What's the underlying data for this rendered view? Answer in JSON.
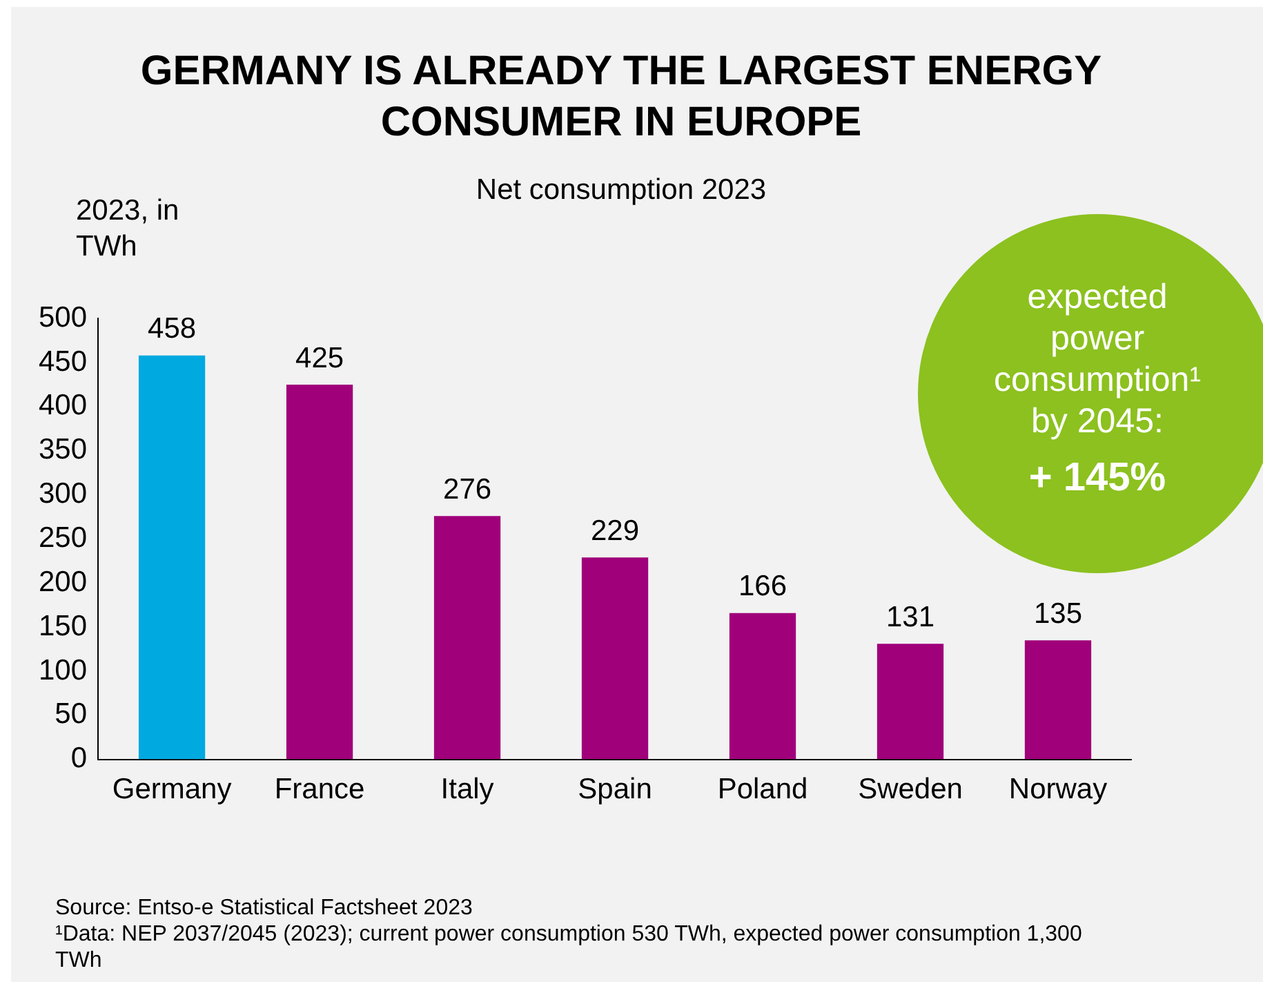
{
  "chart_data": {
    "type": "bar",
    "title": "GERMANY IS ALREADY THE LARGEST ENERGY CONSUMER IN EUROPE",
    "subtitle": "Net consumption 2023",
    "ylabel": "2023, in TWh",
    "categories": [
      "Germany",
      "France",
      "Italy",
      "Spain",
      "Poland",
      "Sweden",
      "Norway"
    ],
    "values": [
      458,
      425,
      276,
      229,
      166,
      131,
      135
    ],
    "colors": [
      "#00a9e0",
      "#a0007a",
      "#a0007a",
      "#a0007a",
      "#a0007a",
      "#a0007a",
      "#a0007a"
    ],
    "ylim": [
      0,
      500
    ],
    "yticks": [
      0,
      50,
      100,
      150,
      200,
      250,
      300,
      350,
      400,
      450,
      500
    ],
    "grid": false,
    "legend": false,
    "data_labels": true,
    "annotations": [
      "expected power consumption¹ by 2045:",
      "+ 145%",
      "Source: Entso-e Statistical Factsheet 2023",
      "¹Data: NEP 2037/2045 (2023); current power consumption 530 TWh, expected power consumption 1,300 TWh"
    ]
  }
}
